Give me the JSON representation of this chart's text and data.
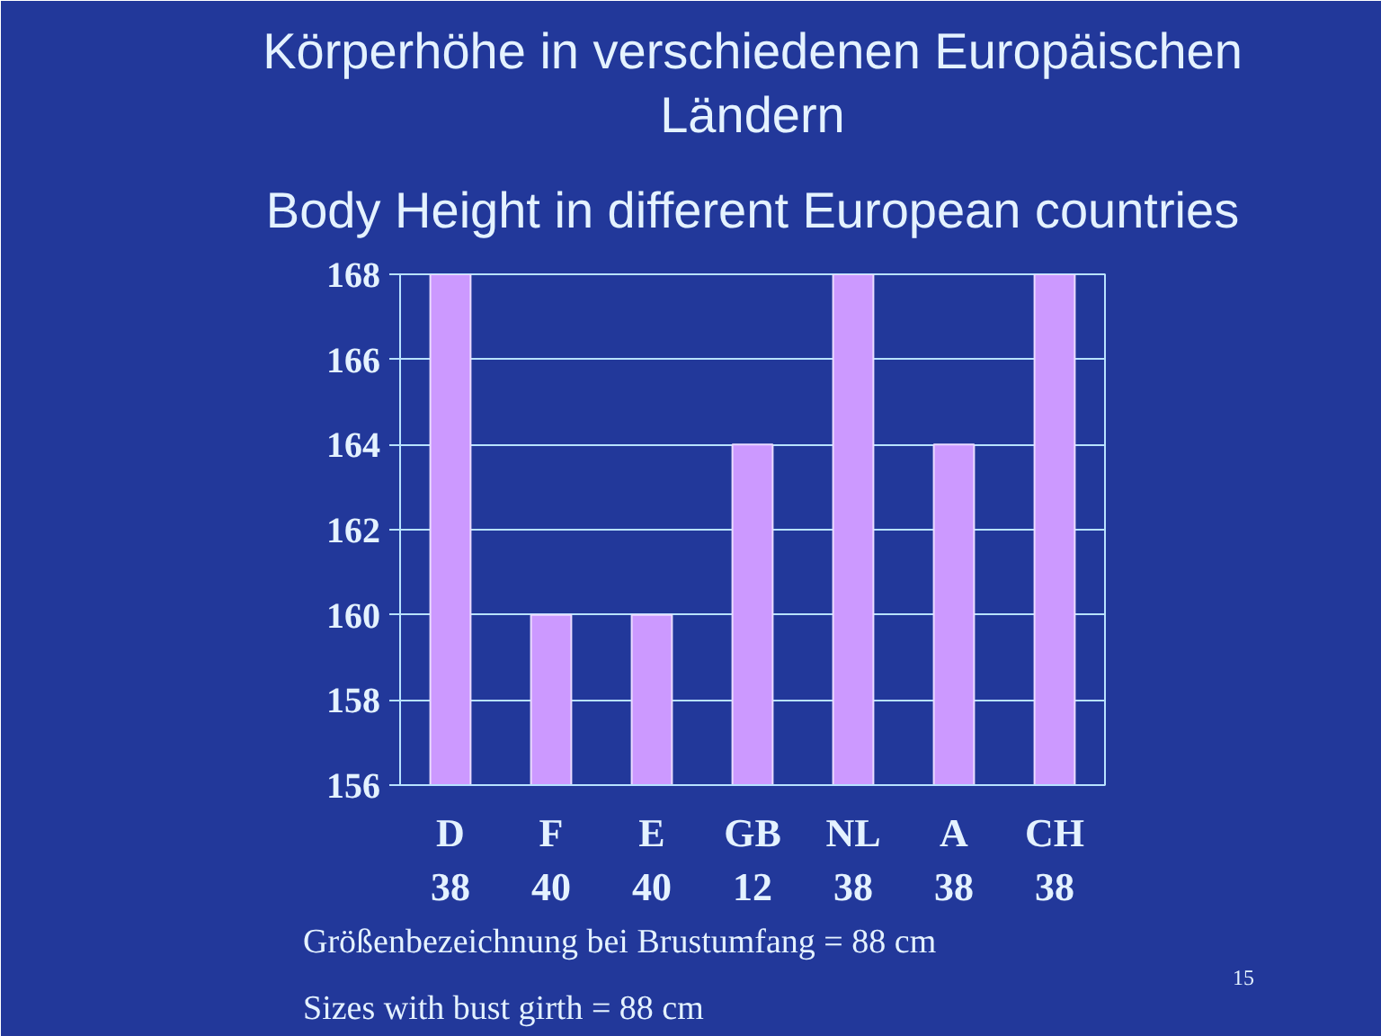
{
  "chart_data": {
    "type": "bar",
    "title": "Körperhöhe in verschiedenen Europäischen Ländern",
    "subtitle": "Body Height in different European countries",
    "categories": [
      "D\n38",
      "F\n40",
      "E\n40",
      "GB\n12",
      "NL\n38",
      "A\n38",
      "CH\n38"
    ],
    "values": [
      168,
      160,
      160,
      164,
      168,
      164,
      168
    ],
    "color": "#cc99ff",
    "ylim": [
      156,
      168
    ],
    "yticks": [
      156,
      158,
      160,
      162,
      164,
      166,
      168
    ],
    "grid": "y",
    "annotations": [
      "Größenbezeichnung bei Brustumfang = 88 cm",
      "Sizes with bust girth = 88 cm",
      "15"
    ]
  }
}
